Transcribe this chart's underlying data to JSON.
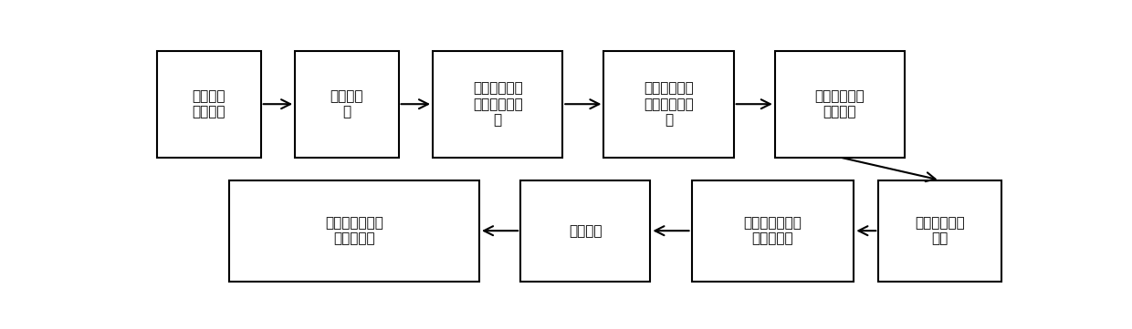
{
  "boxes": [
    {
      "id": 0,
      "row": 1,
      "col": 0,
      "text": "加载网络\n结构数据"
    },
    {
      "id": 1,
      "row": 1,
      "col": 1,
      "text": "数据预处\n理"
    },
    {
      "id": 2,
      "row": 1,
      "col": 2,
      "text": "基于多层次方\n法生成初始布\n局"
    },
    {
      "id": 3,
      "row": 1,
      "col": 3,
      "text": "针对新增节点\n初始化节点位\n置"
    },
    {
      "id": 4,
      "row": 1,
      "col": 4,
      "text": "针对新增边调\n整边大小"
    },
    {
      "id": 5,
      "row": 2,
      "col": 4,
      "text": "计算节点等级\n属性"
    },
    {
      "id": 6,
      "row": 2,
      "col": 3,
      "text": "基于等级特征约\n束节点移动"
    },
    {
      "id": 7,
      "row": 2,
      "col": 2,
      "text": "节点分区"
    },
    {
      "id": 8,
      "row": 2,
      "col": 1,
      "text": "基于分区简化布\n局更新过程"
    }
  ],
  "row1_arrows": [
    [
      0,
      1
    ],
    [
      1,
      2
    ],
    [
      2,
      3
    ],
    [
      3,
      4
    ]
  ],
  "row2_arrows": [
    [
      5,
      6
    ],
    [
      6,
      7
    ],
    [
      7,
      8
    ]
  ],
  "down_arrow": [
    4,
    5
  ],
  "box_positions": {
    "0": [
      0.018,
      0.535,
      0.118,
      0.42
    ],
    "1": [
      0.175,
      0.535,
      0.118,
      0.42
    ],
    "2": [
      0.332,
      0.535,
      0.148,
      0.42
    ],
    "3": [
      0.527,
      0.535,
      0.148,
      0.42
    ],
    "4": [
      0.722,
      0.535,
      0.148,
      0.42
    ],
    "5": [
      0.84,
      0.045,
      0.14,
      0.4
    ],
    "6": [
      0.627,
      0.045,
      0.185,
      0.4
    ],
    "7": [
      0.432,
      0.045,
      0.148,
      0.4
    ],
    "8": [
      0.1,
      0.045,
      0.285,
      0.4
    ]
  },
  "box_color": "#ffffff",
  "box_edge_color": "#000000",
  "arrow_color": "#000000",
  "bg_color": "#ffffff",
  "fontsize": 11,
  "linewidth": 1.5
}
